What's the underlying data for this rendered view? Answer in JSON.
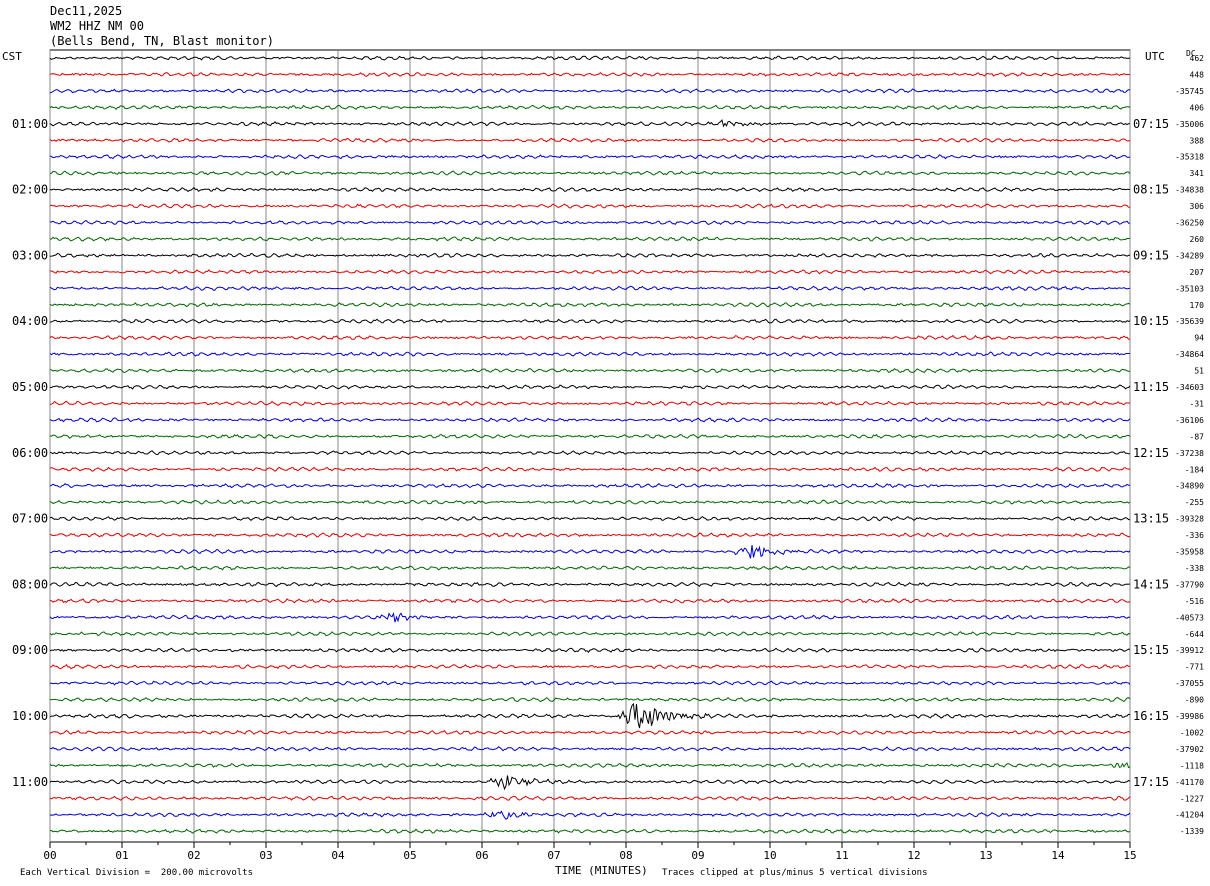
{
  "header": {
    "date": "Dec11,2025",
    "station": "WM2 HHZ NM 00",
    "location": "(Bells Bend, TN, Blast monitor)"
  },
  "axis": {
    "left_tz": "CST",
    "right_tz": "UTC",
    "dc_label": "DC",
    "xlabel": "TIME (MINUTES)",
    "scale_note": "Each Vertical Division =  200.00 microvolts",
    "clip_note": "Traces clipped at plus/minus 5 vertical divisions"
  },
  "colors": {
    "black": "#000000",
    "red": "#dd0000",
    "blue": "#0000cc",
    "green": "#006600",
    "grid": "#888888"
  },
  "chart_data": {
    "type": "line",
    "title": "WM2 HHZ NM 00",
    "xlabel": "TIME (MINUTES)",
    "xlim": [
      0,
      15
    ],
    "x_ticks": [
      "00",
      "01",
      "02",
      "03",
      "04",
      "05",
      "06",
      "07",
      "08",
      "09",
      "10",
      "11",
      "12",
      "13",
      "14",
      "15"
    ],
    "left_hour_labels": [
      "01:00",
      "02:00",
      "03:00",
      "04:00",
      "05:00",
      "06:00",
      "07:00",
      "08:00",
      "09:00",
      "10:00",
      "11:00"
    ],
    "right_hour_labels": [
      "07:15",
      "08:15",
      "09:15",
      "10:15",
      "11:15",
      "12:15",
      "13:15",
      "14:15",
      "15:15",
      "16:15",
      "17:15"
    ],
    "trace_colors_cycle": [
      "black",
      "red",
      "blue",
      "green"
    ],
    "dc_offsets": [
      "462",
      "448",
      "-35745",
      "406",
      "-35006",
      "388",
      "-35318",
      "341",
      "-34838",
      "306",
      "-36250",
      "260",
      "-34289",
      "207",
      "-35103",
      "170",
      "-35639",
      "94",
      "-34864",
      "51",
      "-34603",
      "-31",
      "-36106",
      "-87",
      "-37238",
      "-184",
      "-34890",
      "-255",
      "-39328",
      "-336",
      "-35958",
      "-338",
      "-37790",
      "-516",
      "-40573",
      "-644",
      "-39912",
      "-771",
      "-37055",
      "-890",
      "-39986",
      "-1002",
      "-37902",
      "-1118",
      "-41170",
      "-1227",
      "-41204",
      "-1339"
    ],
    "events": [
      {
        "trace": 4,
        "minute": 9.4,
        "amplitude": 0.45
      },
      {
        "trace": 30,
        "minute": 9.75,
        "amplitude": 0.9
      },
      {
        "trace": 34,
        "minute": 4.75,
        "amplitude": 0.55
      },
      {
        "trace": 40,
        "minute": 8.2,
        "amplitude": 2.2
      },
      {
        "trace": 44,
        "minute": 6.35,
        "amplitude": 0.9
      },
      {
        "trace": 46,
        "minute": 6.25,
        "amplitude": 0.55
      },
      {
        "trace": 43,
        "minute": 15.0,
        "amplitude": 0.6
      }
    ]
  }
}
